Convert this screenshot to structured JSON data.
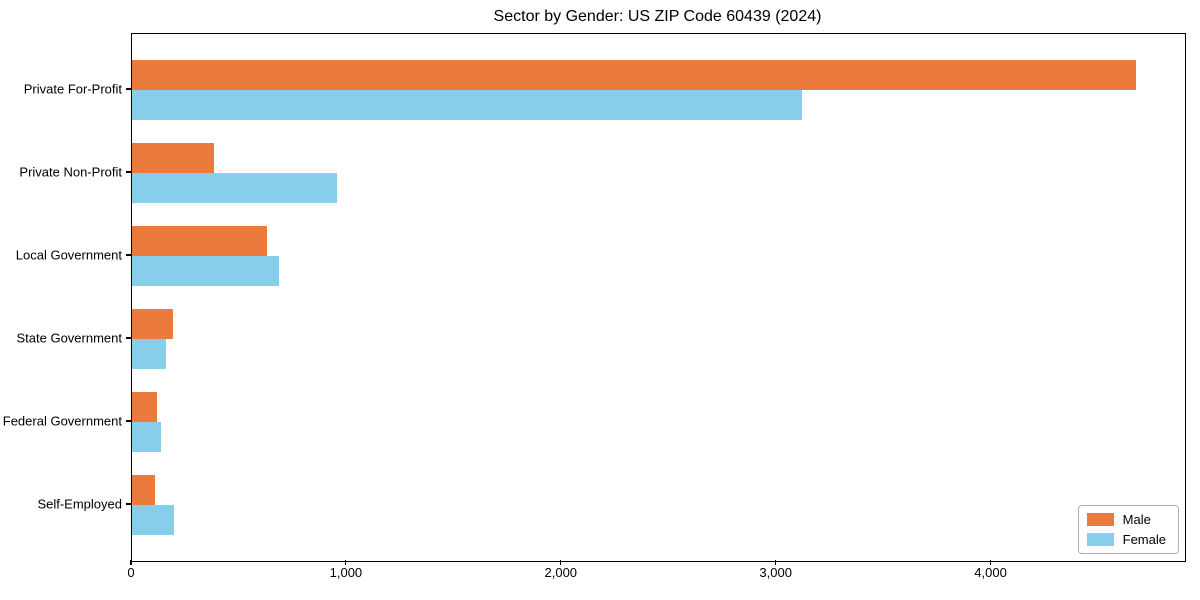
{
  "title": "Sector by Gender: US ZIP Code 60439 (2024)",
  "chart_data": {
    "type": "bar",
    "orientation": "horizontal",
    "title": "Sector by Gender: US ZIP Code 60439 (2024)",
    "categories": [
      "Private For-Profit",
      "Private Non-Profit",
      "Local Government",
      "State Government",
      "Federal Government",
      "Self-Employed"
    ],
    "series": [
      {
        "name": "Male",
        "color": "#eb7b3c",
        "values": [
          4670,
          380,
          630,
          190,
          115,
          105
        ]
      },
      {
        "name": "Female",
        "color": "#87ceeb",
        "values": [
          3120,
          955,
          685,
          160,
          135,
          195
        ]
      }
    ],
    "xlabel": "",
    "ylabel": "",
    "xlim": [
      0,
      4900
    ],
    "x_ticks": [
      {
        "value": 0,
        "label": "0"
      },
      {
        "value": 1000,
        "label": "1,000"
      },
      {
        "value": 2000,
        "label": "2,000"
      },
      {
        "value": 3000,
        "label": "3,000"
      },
      {
        "value": 4000,
        "label": "4,000"
      }
    ],
    "grid": false,
    "legend_position": "lower right",
    "background_color": "#ffffff",
    "axis_color": "#000000"
  }
}
